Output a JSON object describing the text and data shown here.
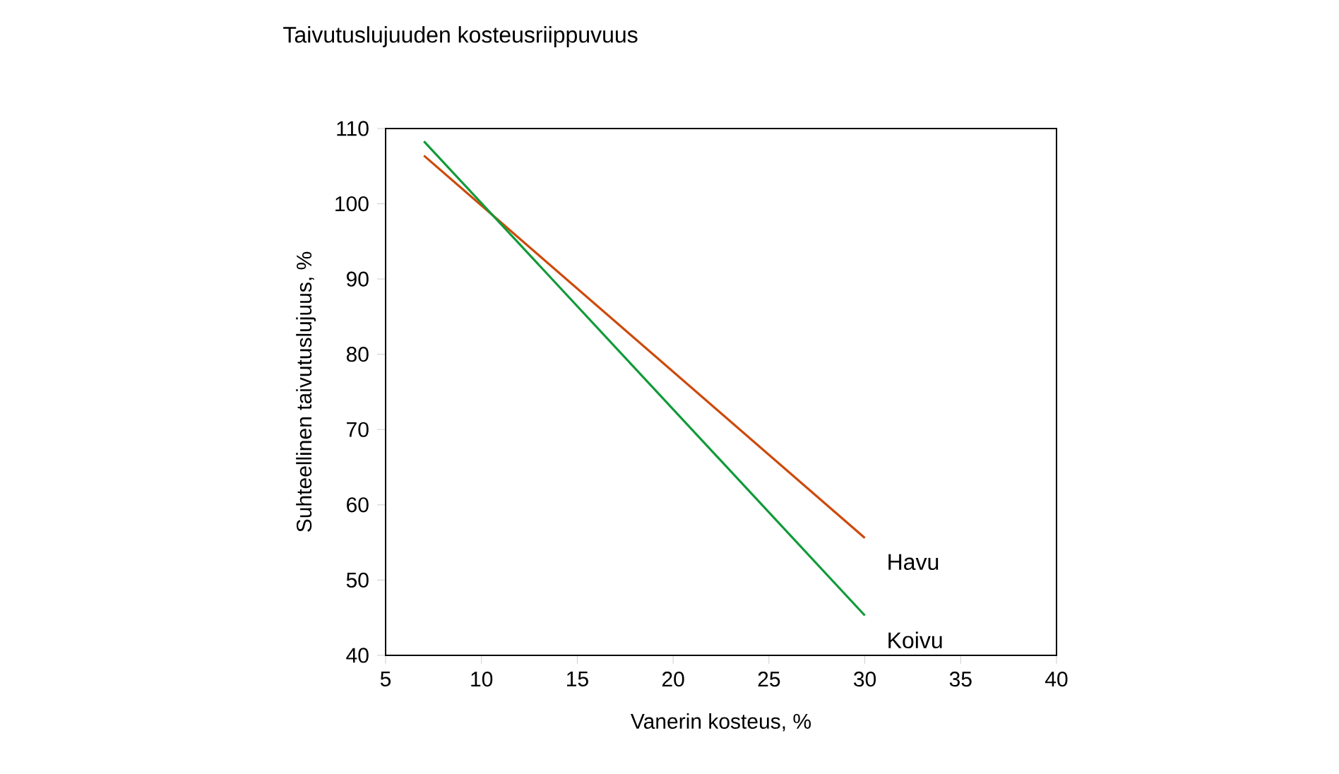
{
  "chart_data": {
    "type": "line",
    "title": "Taivutuslujuuden kosteusriippuvuus",
    "xlabel": "Vanerin kosteus, %",
    "ylabel": "Suhteellinen taivutuslujuus, %",
    "x": [
      7,
      30
    ],
    "series": [
      {
        "name": "Havu",
        "color": "#cc4a0a",
        "values": [
          106.4,
          55.6
        ]
      },
      {
        "name": "Koivu",
        "color": "#119a3a",
        "values": [
          108.3,
          45.3
        ]
      }
    ],
    "xlim": [
      5,
      40
    ],
    "ylim": [
      40,
      110
    ],
    "xticks": [
      5,
      10,
      15,
      20,
      25,
      30,
      35,
      40
    ],
    "yticks": [
      40,
      50,
      60,
      70,
      80,
      90,
      100,
      110
    ],
    "grid": false,
    "legend": false,
    "marker": "none",
    "line_style": "solid"
  }
}
